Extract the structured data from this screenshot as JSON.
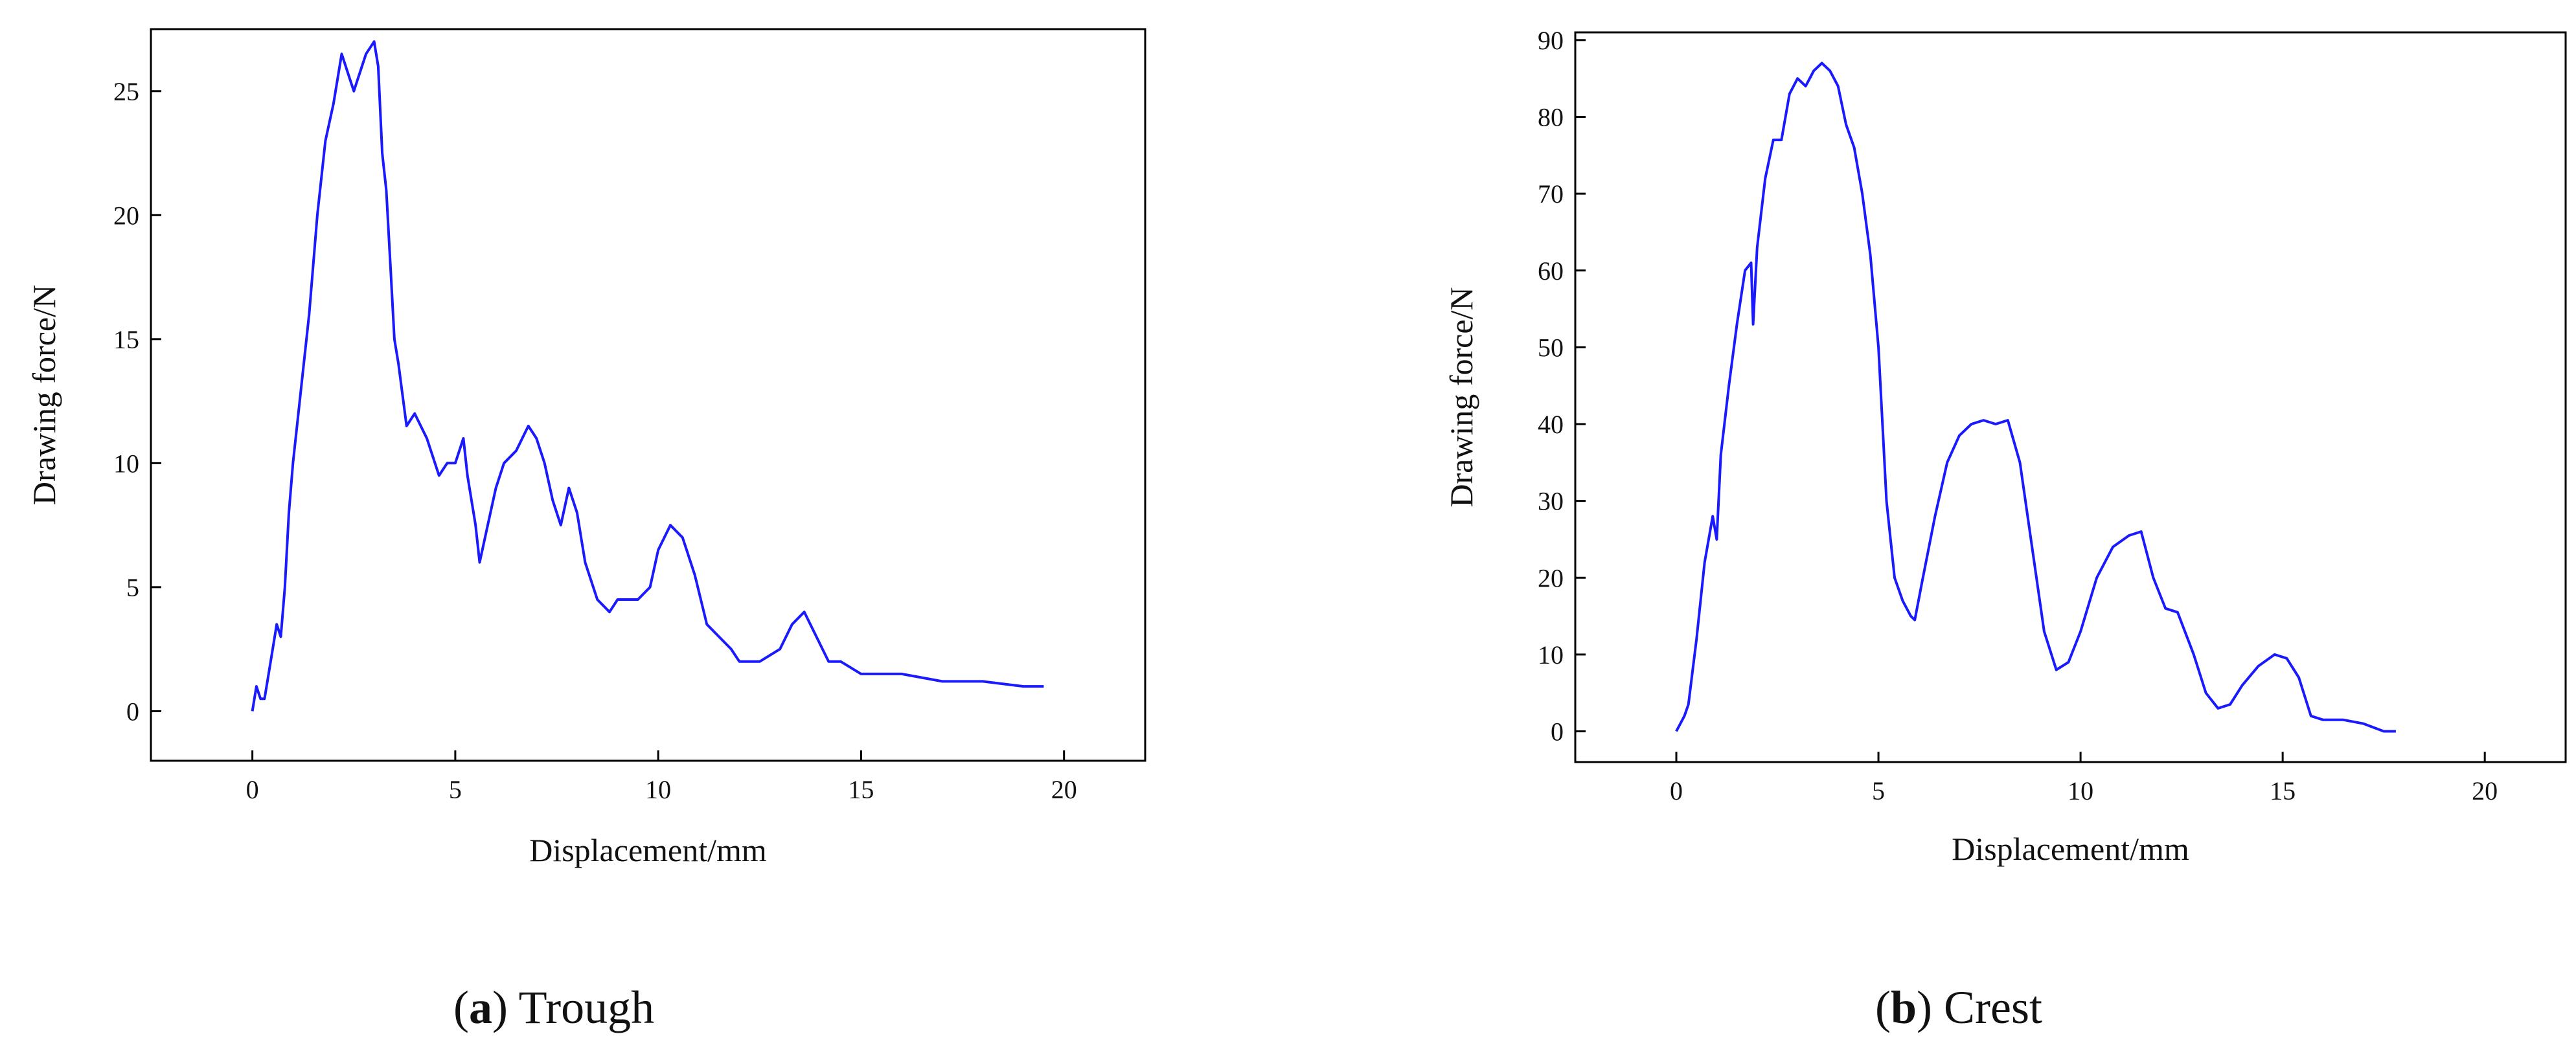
{
  "captions": [
    {
      "letter": "a",
      "text": "Trough"
    },
    {
      "letter": "b",
      "text": "Crest"
    }
  ],
  "colors": {
    "line": "#1a1aff",
    "axis": "#000000"
  },
  "chart_data": [
    {
      "type": "line",
      "xlabel": "Displacement/mm",
      "ylabel": "Drawing force/N",
      "xlim": [
        -2.5,
        22
      ],
      "ylim": [
        -2,
        27.5
      ],
      "xticks": [
        0,
        5,
        10,
        15,
        20
      ],
      "yticks": [
        0,
        5,
        10,
        15,
        20,
        25
      ],
      "grid": false,
      "series": [
        {
          "x": [
            0,
            0.1,
            0.2,
            0.3,
            0.4,
            0.5,
            0.6,
            0.7,
            0.8,
            0.9,
            1.0,
            1.2,
            1.4,
            1.6,
            1.8,
            2.0,
            2.2,
            2.4,
            2.5,
            2.6,
            2.8,
            3.0,
            3.1,
            3.2,
            3.3,
            3.4,
            3.5,
            3.6,
            3.8,
            4.0,
            4.3,
            4.6,
            4.8,
            5.0,
            5.2,
            5.3,
            5.5,
            5.6,
            5.8,
            6.0,
            6.2,
            6.5,
            6.8,
            7.0,
            7.2,
            7.4,
            7.6,
            7.8,
            8.0,
            8.2,
            8.5,
            8.8,
            9.0,
            9.5,
            9.8,
            10.0,
            10.3,
            10.6,
            10.9,
            11.2,
            11.5,
            11.8,
            12.0,
            12.5,
            13.0,
            13.3,
            13.6,
            13.9,
            14.2,
            14.5,
            15.0,
            16.0,
            17.0,
            18.0,
            19.0,
            19.5
          ],
          "y": [
            0,
            1,
            0.5,
            0.5,
            1.5,
            2.5,
            3.5,
            3,
            5,
            8,
            10,
            13,
            16,
            20,
            23,
            24.5,
            26.5,
            25.5,
            25,
            25.5,
            26.5,
            27,
            26,
            22.5,
            21,
            18,
            15,
            14,
            11.5,
            12,
            11,
            9.5,
            10,
            10,
            11,
            9.5,
            7.5,
            6,
            7.5,
            9,
            10,
            10.5,
            11.5,
            11,
            10,
            8.5,
            7.5,
            9,
            8,
            6,
            4.5,
            4,
            4.5,
            4.5,
            5,
            6.5,
            7.5,
            7,
            5.5,
            3.5,
            3,
            2.5,
            2,
            2,
            2.5,
            3.5,
            4,
            3,
            2,
            2,
            1.5,
            1.5,
            1.2,
            1.2,
            1,
            1
          ]
        }
      ]
    },
    {
      "type": "line",
      "xlabel": "Displacement/mm",
      "ylabel": "Drawing force/N",
      "xlim": [
        -2.5,
        22
      ],
      "ylim": [
        -4,
        91
      ],
      "xticks": [
        0,
        5,
        10,
        15,
        20
      ],
      "yticks": [
        0,
        10,
        20,
        30,
        40,
        50,
        60,
        70,
        80,
        90
      ],
      "grid": false,
      "series": [
        {
          "x": [
            0,
            0.2,
            0.3,
            0.5,
            0.7,
            0.9,
            1.0,
            1.1,
            1.3,
            1.5,
            1.7,
            1.85,
            1.9,
            2.0,
            2.2,
            2.4,
            2.6,
            2.8,
            3.0,
            3.2,
            3.4,
            3.6,
            3.8,
            4.0,
            4.2,
            4.4,
            4.6,
            4.8,
            5.0,
            5.2,
            5.4,
            5.6,
            5.8,
            5.9,
            6.1,
            6.4,
            6.7,
            7.0,
            7.3,
            7.6,
            7.9,
            8.2,
            8.5,
            8.8,
            9.1,
            9.4,
            9.7,
            10.0,
            10.4,
            10.8,
            11.2,
            11.5,
            11.8,
            12.1,
            12.4,
            12.8,
            13.1,
            13.4,
            13.7,
            14.0,
            14.4,
            14.8,
            15.1,
            15.4,
            15.7,
            16.0,
            16.5,
            17.0,
            17.5,
            17.8
          ],
          "y": [
            0,
            2,
            3.5,
            12,
            22,
            28,
            25,
            36,
            45,
            53,
            60,
            61,
            53,
            63,
            72,
            77,
            77,
            83,
            85,
            84,
            86,
            87,
            86,
            84,
            79,
            76,
            70,
            62,
            50,
            30,
            20,
            17,
            15,
            14.5,
            20,
            28,
            35,
            38.5,
            40,
            40.5,
            40,
            40.5,
            35,
            24,
            13,
            8,
            9,
            13,
            20,
            24,
            25.5,
            26,
            20,
            16,
            15.5,
            10,
            5,
            3,
            3.5,
            6,
            8.5,
            10,
            9.5,
            7,
            2,
            1.5,
            1.5,
            1,
            0,
            0
          ]
        }
      ]
    }
  ]
}
